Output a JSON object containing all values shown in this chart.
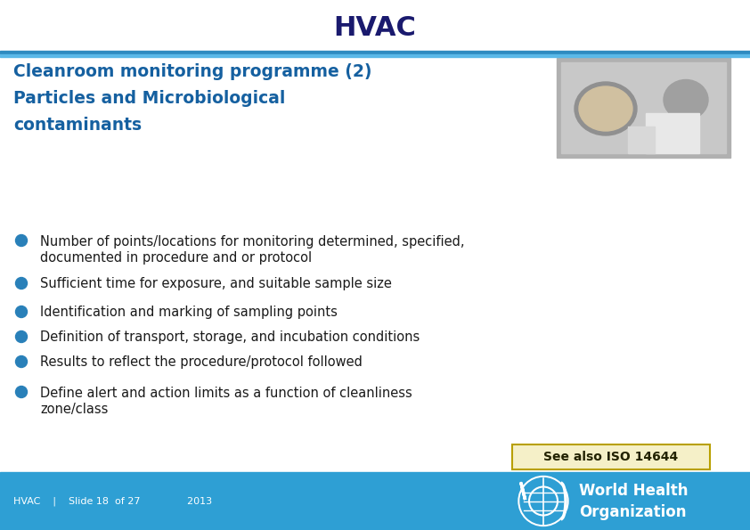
{
  "title": "HVAC",
  "subtitle_line1": "Cleanroom monitoring programme (2)",
  "subtitle_line2": "Particles and Microbiological",
  "subtitle_line3": "contaminants",
  "bullet_points": [
    [
      "Number of points/locations for monitoring determined, specified,",
      "documented in procedure and or protocol"
    ],
    [
      "Sufficient time for exposure, and suitable sample size"
    ],
    [
      "Identification and marking of sampling points"
    ],
    [
      "Definition of transport, storage, and incubation conditions"
    ],
    [
      "Results to reflect the procedure/protocol followed"
    ],
    [
      "Define alert and action limits as a function of cleanliness",
      "zone/class"
    ]
  ],
  "footer_left1": "HVAC",
  "footer_left2": "|",
  "footer_left3": "Slide 18  of 27",
  "footer_left4": "2013",
  "see_also_box": "See also ISO 14644",
  "bg_color": "#ffffff",
  "title_color": "#1a1a6e",
  "subtitle_color": "#1560a0",
  "bullet_color": "#2980b9",
  "text_color": "#1a1a1a",
  "footer_bg": "#2e9fd4",
  "footer_text_color": "#ffffff",
  "header_line_dark": "#2e8bc0",
  "header_line_light": "#5ab8e8",
  "see_also_bg": "#f5f0c8",
  "see_also_border": "#b8a000",
  "img_placeholder_color": "#aaaaaa"
}
